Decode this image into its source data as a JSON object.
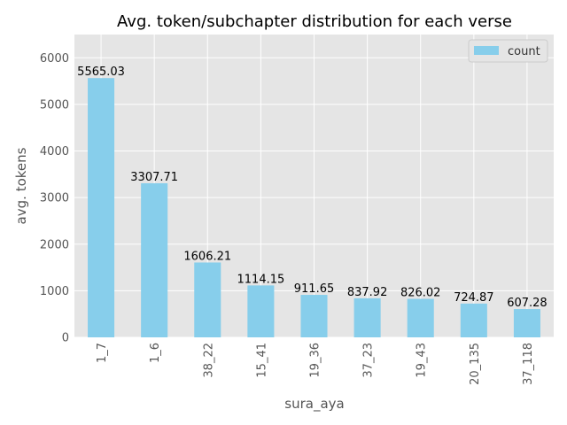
{
  "chart_data": {
    "type": "bar",
    "title": "Avg. token/subchapter distribution for each verse",
    "xlabel": "sura_aya",
    "ylabel": "avg. tokens",
    "categories": [
      "1_7",
      "1_6",
      "38_22",
      "15_41",
      "19_36",
      "37_23",
      "19_43",
      "20_135",
      "37_118"
    ],
    "series": [
      {
        "name": "count",
        "values": [
          5565.03,
          3307.71,
          1606.21,
          1114.15,
          911.65,
          837.92,
          826.02,
          724.87,
          607.28
        ]
      }
    ],
    "data_labels": [
      "5565.03",
      "3307.71",
      "1606.21",
      "1114.15",
      "911.65",
      "837.92",
      "826.02",
      "724.87",
      "607.28"
    ],
    "ylim": [
      0,
      6500
    ],
    "yticks": [
      0,
      1000,
      2000,
      3000,
      4000,
      5000,
      6000
    ],
    "grid": true,
    "legend_position": "top-right",
    "colors": {
      "bar": "#87ceeb",
      "plot_background": "#e5e5e5",
      "grid": "#ffffff"
    }
  }
}
